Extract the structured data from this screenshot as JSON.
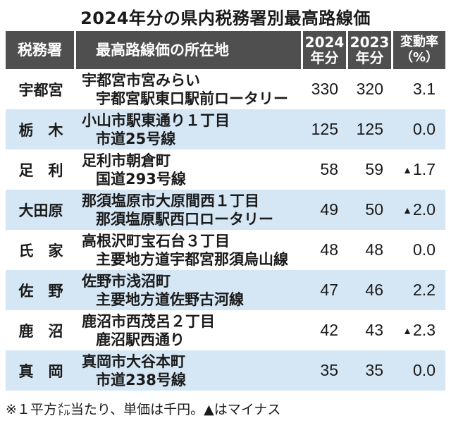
{
  "title": "2024年分の県内税務署別最高路線価",
  "header": {
    "office": "税務署",
    "location": "最高路線価の所在地",
    "y2024_line1": "2024",
    "y2024_line2": "年分",
    "y2023_line1": "2023",
    "y2023_line2": "年分",
    "rate_line1": "変動率",
    "rate_line2": "（%）"
  },
  "rows": [
    {
      "office": "宇都宮",
      "loc1": "宇都宮市宮みらい",
      "loc2": "宇都宮駅東口駅前ロータリー",
      "v2024": "330",
      "v2023": "320",
      "rate_sign": "",
      "rate": "3.1"
    },
    {
      "office": "栃　木",
      "loc1": "小山市駅東通り１丁目",
      "loc2": "市道25号線",
      "v2024": "125",
      "v2023": "125",
      "rate_sign": "",
      "rate": "0.0"
    },
    {
      "office": "足　利",
      "loc1": "足利市朝倉町",
      "loc2": "国道293号線",
      "v2024": "58",
      "v2023": "59",
      "rate_sign": "▲",
      "rate": "1.7"
    },
    {
      "office": "大田原",
      "loc1": "那須塩原市大原間西１丁目",
      "loc2": "那須塩原駅西口ロータリー",
      "v2024": "49",
      "v2023": "50",
      "rate_sign": "▲",
      "rate": "2.0"
    },
    {
      "office": "氏　家",
      "loc1": "高根沢町宝石台３丁目",
      "loc2": "主要地方道宇都宮那須烏山線",
      "v2024": "48",
      "v2023": "48",
      "rate_sign": "",
      "rate": "0.0"
    },
    {
      "office": "佐　野",
      "loc1": "佐野市浅沼町",
      "loc2": "主要地方道佐野古河線",
      "v2024": "47",
      "v2023": "46",
      "rate_sign": "",
      "rate": "2.2"
    },
    {
      "office": "鹿　沼",
      "loc1": "鹿沼市西茂呂２丁目",
      "loc2": "鹿沼駅西通り",
      "v2024": "42",
      "v2023": "43",
      "rate_sign": "▲",
      "rate": "2.3"
    },
    {
      "office": "真　岡",
      "loc1": "真岡市大谷本町",
      "loc2": "市道238号線",
      "v2024": "35",
      "v2023": "35",
      "rate_sign": "",
      "rate": "0.0"
    }
  ],
  "note": "※１平方㍍当たり、単価は千円。▲はマイナス"
}
